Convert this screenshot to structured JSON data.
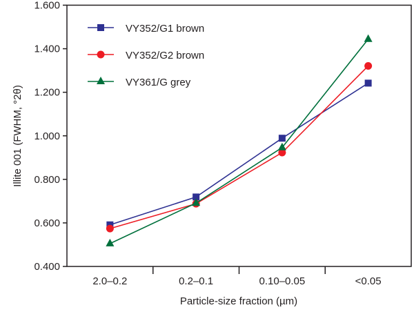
{
  "chart_data": {
    "type": "line",
    "title": "",
    "xlabel": "Particle-size fraction (µm)",
    "ylabel": "Illite 001 (FWHM, °2θ)",
    "categories": [
      "2.0–0.2",
      "0.2–0.1",
      "0.10–0.05",
      "<0.05"
    ],
    "ylim": [
      0.4,
      1.6
    ],
    "yticks": [
      0.4,
      0.6,
      0.8,
      1.0,
      1.2,
      1.4,
      1.6
    ],
    "ytick_labels": [
      "0.400",
      "0.600",
      "0.800",
      "1.000",
      "1.200",
      "1.400",
      "1.600"
    ],
    "grid": false,
    "legend_placement": "top-left",
    "series": [
      {
        "name": "VY352/G1 brown",
        "color": "#2e3192",
        "marker": "square",
        "values": [
          0.591,
          0.719,
          0.989,
          1.242
        ]
      },
      {
        "name": "VY352/G2 brown",
        "color": "#ed1c24",
        "marker": "circle",
        "values": [
          0.574,
          0.688,
          0.923,
          1.321
        ]
      },
      {
        "name": "VY361/G grey",
        "color": "#00703c",
        "marker": "triangle",
        "values": [
          0.505,
          0.691,
          0.946,
          1.444
        ]
      }
    ]
  }
}
